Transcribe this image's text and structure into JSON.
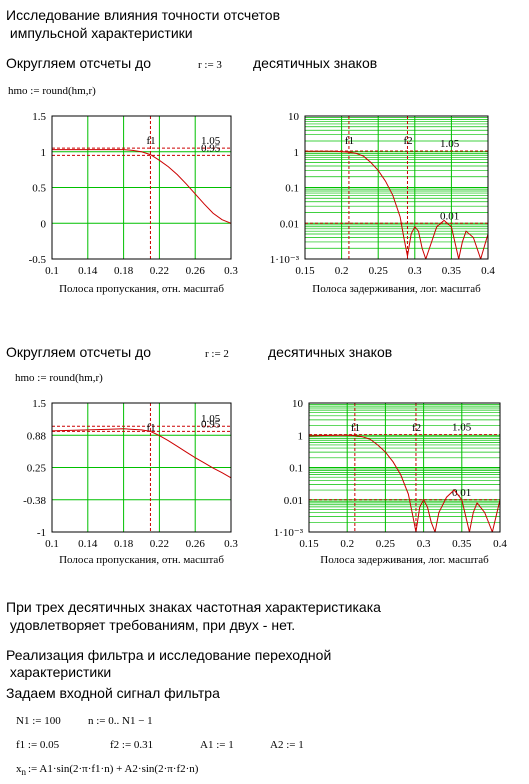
{
  "title": [
    "Исследование влияния точности отсчетов",
    " импульсной характеристики"
  ],
  "section1": {
    "lead": "Округляем отсчеты  до",
    "r": "r := 3",
    "tail": "десятичных знаков",
    "formula": "hmo := round(hm,r)"
  },
  "section2": {
    "lead": "Округляем отсчеты до",
    "r": "r := 2",
    "tail": "десятичных знаков",
    "formula": "hmo := round(hm,r)"
  },
  "conclusion": [
    "При трех десятичных знаках частотная характеристикака",
    " удовлетворяет требованиям, при двух - нет."
  ],
  "heading2": [
    "Реализация фильтра и исследование переходной",
    " характеристики"
  ],
  "input": "Задаем входной сигнал фильтра",
  "formulas": {
    "row1": [
      "N1 := 100",
      "n := 0.. N1 − 1"
    ],
    "row2": [
      "f1 := 0.05",
      "f2 := 0.31",
      "A1 := 1",
      "A2 := 1"
    ],
    "row3": {
      "var": "x",
      "sub": "n",
      "rhs": ":= A1·sin(2·π·f1·n) + A2·sin(2·π·f2·n)"
    }
  },
  "chart_data": [
    {
      "type": "line",
      "xlabel": "Полоса пропускания, отн. масштаб",
      "x": [
        0.1,
        0.12,
        0.14,
        0.16,
        0.18,
        0.19,
        0.2,
        0.21,
        0.22,
        0.23,
        0.24,
        0.25,
        0.26,
        0.27,
        0.28,
        0.29,
        0.3
      ],
      "series": [
        {
          "color": "#cc0000",
          "values": [
            1.03,
            1.03,
            1.03,
            1.03,
            1.03,
            1.02,
            1.0,
            0.96,
            0.88,
            0.79,
            0.68,
            0.55,
            0.41,
            0.27,
            0.14,
            0.05,
            0.0
          ]
        }
      ],
      "xlim": [
        0.1,
        0.3
      ],
      "ylim": [
        -0.5,
        1.5
      ],
      "xticks": [
        0.1,
        0.14,
        0.18,
        0.22,
        0.26,
        0.3
      ],
      "yticks": [
        1.5,
        1,
        0.5,
        0,
        -0.5
      ],
      "grid": true,
      "log_y": false,
      "vlines": [
        {
          "label": "f1",
          "x": 0.21
        }
      ],
      "hlines": [
        {
          "label": "1.05",
          "y": 1.05
        },
        {
          "label": "0.95",
          "y": 0.95
        }
      ]
    },
    {
      "type": "line",
      "xlabel": "Полоса задерживания, лог. масштаб",
      "x": [
        0.15,
        0.17,
        0.19,
        0.2,
        0.21,
        0.22,
        0.23,
        0.24,
        0.25,
        0.26,
        0.27,
        0.28,
        0.285,
        0.29,
        0.295,
        0.3,
        0.305,
        0.31,
        0.315,
        0.32,
        0.33,
        0.34,
        0.35,
        0.36,
        0.365,
        0.37,
        0.38,
        0.39,
        0.4
      ],
      "series": [
        {
          "color": "#cc0000",
          "values": [
            1.03,
            1.03,
            1.03,
            1.0,
            0.97,
            0.9,
            0.75,
            0.5,
            0.3,
            0.15,
            0.06,
            0.015,
            0.004,
            0.0012,
            0.005,
            0.008,
            0.006,
            0.002,
            0.001,
            0.002,
            0.008,
            0.012,
            0.008,
            0.001,
            0.003,
            0.006,
            0.004,
            0.001,
            0.005
          ]
        }
      ],
      "xlim": [
        0.15,
        0.4
      ],
      "ylim": [
        0.001,
        10
      ],
      "xticks": [
        0.15,
        0.2,
        0.25,
        0.3,
        0.35,
        0.4
      ],
      "yticks": [
        10,
        1,
        0.1,
        0.01,
        {
          "value": 0.001,
          "label": "1·10⁻³"
        }
      ],
      "grid": true,
      "log_y": true,
      "minor_grid": true,
      "vlines": [
        {
          "label": "f1",
          "x": 0.21
        },
        {
          "label": "f2",
          "x": 0.29
        }
      ],
      "hlines": [
        {
          "label": "1.05",
          "y": 1.05
        },
        {
          "label": "0.01",
          "y": 0.01
        }
      ]
    },
    {
      "type": "line",
      "xlabel": "Полоса пропускания, отн. масштаб",
      "x": [
        0.1,
        0.12,
        0.14,
        0.16,
        0.18,
        0.19,
        0.2,
        0.21,
        0.22,
        0.23,
        0.24,
        0.25,
        0.26,
        0.27,
        0.28,
        0.29,
        0.3
      ],
      "series": [
        {
          "color": "#cc0000",
          "values": [
            0.96,
            0.97,
            0.98,
            0.99,
            1.0,
            0.99,
            0.98,
            0.95,
            0.87,
            0.77,
            0.66,
            0.55,
            0.44,
            0.34,
            0.24,
            0.15,
            0.05
          ]
        }
      ],
      "xlim": [
        0.1,
        0.3
      ],
      "ylim": [
        -1,
        1.5
      ],
      "xticks": [
        0.1,
        0.14,
        0.18,
        0.22,
        0.26,
        0.3
      ],
      "yticks": [
        1.5,
        {
          "value": 0.875,
          "label": "0.88"
        },
        0.25,
        {
          "value": -0.375,
          "label": "-0.38"
        },
        -1
      ],
      "grid": true,
      "log_y": false,
      "vlines": [
        {
          "label": "f1",
          "x": 0.21
        }
      ],
      "hlines": [
        {
          "label": "1.05",
          "y": 1.05
        },
        {
          "label": "0.95",
          "y": 0.95
        }
      ]
    },
    {
      "type": "line",
      "xlabel": "Полоса задерживания, лог. масштаб",
      "x": [
        0.15,
        0.17,
        0.19,
        0.2,
        0.21,
        0.22,
        0.23,
        0.24,
        0.25,
        0.26,
        0.27,
        0.28,
        0.285,
        0.29,
        0.295,
        0.3,
        0.305,
        0.31,
        0.315,
        0.32,
        0.33,
        0.34,
        0.35,
        0.36,
        0.365,
        0.37,
        0.38,
        0.39,
        0.4
      ],
      "series": [
        {
          "color": "#cc0000",
          "values": [
            0.96,
            0.98,
            1.0,
            1.0,
            0.97,
            0.9,
            0.75,
            0.5,
            0.3,
            0.15,
            0.06,
            0.015,
            0.004,
            0.001,
            0.006,
            0.01,
            0.006,
            0.002,
            0.001,
            0.004,
            0.012,
            0.02,
            0.01,
            0.001,
            0.004,
            0.008,
            0.004,
            0.001,
            0.01
          ]
        }
      ],
      "xlim": [
        0.15,
        0.4
      ],
      "ylim": [
        0.001,
        10
      ],
      "xticks": [
        0.15,
        0.2,
        0.25,
        0.3,
        0.35,
        0.4
      ],
      "yticks": [
        10,
        1,
        0.1,
        0.01,
        {
          "value": 0.001,
          "label": "1·10⁻³"
        }
      ],
      "grid": true,
      "log_y": true,
      "minor_grid": true,
      "vlines": [
        {
          "label": "f1",
          "x": 0.21
        },
        {
          "label": "f2",
          "x": 0.29
        }
      ],
      "hlines": [
        {
          "label": "1.05",
          "y": 1.05
        },
        {
          "label": "0.01",
          "y": 0.01
        }
      ]
    }
  ]
}
